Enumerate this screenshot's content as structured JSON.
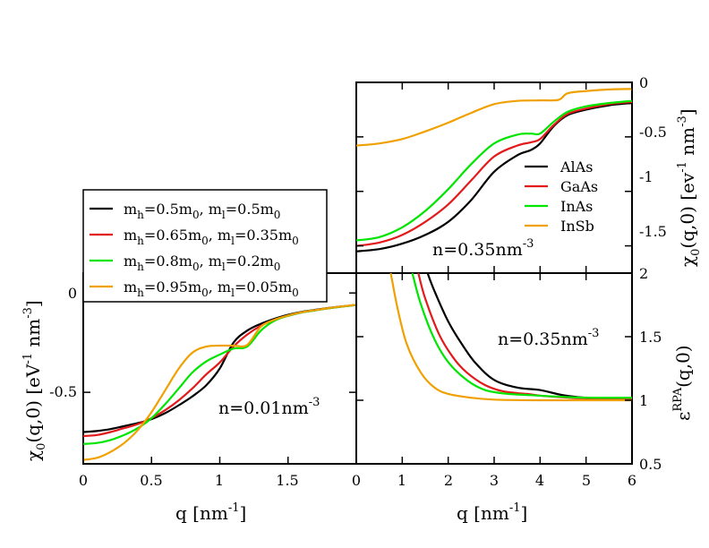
{
  "colors": {
    "black": "#000000",
    "red": "#e31a1c",
    "green": "#00e600",
    "orange": "#f0a000"
  },
  "chart_data": [
    {
      "id": "chi_low_density",
      "type": "line",
      "xlabel": "q [nm",
      "xlabel_sup": "-1",
      "xlabel_tail": "]",
      "ylabel_main": "χ",
      "ylabel_sub": "0",
      "ylabel_mid": "(q,0) [eV",
      "ylabel_sup1": "-1",
      "ylabel_mid2": " nm",
      "ylabel_sup2": "-3",
      "ylabel_tail": "]",
      "xlim": [
        0,
        2.0
      ],
      "ylim": [
        -0.86,
        0.1
      ],
      "xticks": [
        "0",
        "0.5",
        "1",
        "1.5"
      ],
      "yticks": [
        "-0.5",
        "0"
      ],
      "annotation": "n=0.01nm",
      "annotation_sup": "-3",
      "legend_position": "top-left",
      "series": [
        {
          "name": "m_h=0.5m_0, m_l=0.5m_0",
          "legend": {
            "a": "m",
            "b": "h",
            "c": "=0.5m",
            "d": "0",
            "e": ", m",
            "f": "l",
            "g": "=0.5m",
            "h": "0"
          },
          "color": "#000000",
          "x": [
            0,
            0.1,
            0.2,
            0.3,
            0.4,
            0.5,
            0.6,
            0.7,
            0.8,
            0.9,
            1.0,
            1.1,
            1.2,
            1.3,
            1.4,
            1.5,
            1.6,
            1.7,
            1.8,
            1.9,
            2.0
          ],
          "y": [
            -0.7,
            -0.695,
            -0.685,
            -0.67,
            -0.655,
            -0.635,
            -0.605,
            -0.565,
            -0.52,
            -0.465,
            -0.38,
            -0.25,
            -0.19,
            -0.155,
            -0.13,
            -0.11,
            -0.095,
            -0.085,
            -0.075,
            -0.067,
            -0.06
          ]
        },
        {
          "name": "m_h=0.65m_0, m_l=0.35m_0",
          "legend": {
            "a": "m",
            "b": "h",
            "c": "=0.65m",
            "d": "0",
            "e": ", m",
            "f": "l",
            "g": "=0.35m",
            "h": "0"
          },
          "color": "#e31a1c",
          "x": [
            0,
            0.1,
            0.2,
            0.3,
            0.4,
            0.5,
            0.6,
            0.7,
            0.8,
            0.9,
            1.0,
            1.1,
            1.2,
            1.3,
            1.4,
            1.5,
            1.6,
            1.7,
            1.8,
            1.9,
            2.0
          ],
          "y": [
            -0.72,
            -0.715,
            -0.7,
            -0.68,
            -0.66,
            -0.63,
            -0.59,
            -0.54,
            -0.48,
            -0.41,
            -0.35,
            -0.27,
            -0.21,
            -0.165,
            -0.135,
            -0.115,
            -0.098,
            -0.087,
            -0.077,
            -0.068,
            -0.06
          ]
        },
        {
          "name": "m_h=0.8m_0, m_l=0.2m_0",
          "legend": {
            "a": "m",
            "b": "h",
            "c": "=0.8m",
            "d": "0",
            "e": ", m",
            "f": "l",
            "g": "=0.2m",
            "h": "0"
          },
          "color": "#00e600",
          "x": [
            0,
            0.1,
            0.2,
            0.3,
            0.4,
            0.5,
            0.6,
            0.7,
            0.8,
            0.9,
            1.0,
            1.1,
            1.2,
            1.3,
            1.4,
            1.5,
            1.6,
            1.7,
            1.8,
            1.9,
            2.0
          ],
          "y": [
            -0.76,
            -0.755,
            -0.74,
            -0.715,
            -0.68,
            -0.63,
            -0.56,
            -0.48,
            -0.4,
            -0.345,
            -0.31,
            -0.28,
            -0.27,
            -0.19,
            -0.14,
            -0.115,
            -0.098,
            -0.087,
            -0.077,
            -0.068,
            -0.06
          ]
        },
        {
          "name": "m_h=0.95m_0, m_l=0.05m_0",
          "legend": {
            "a": "m",
            "b": "h",
            "c": "=0.95m",
            "d": "0",
            "e": ", m",
            "f": "l",
            "g": "=0.05m",
            "h": "0"
          },
          "color": "#f0a000",
          "x": [
            0,
            0.1,
            0.2,
            0.3,
            0.4,
            0.5,
            0.6,
            0.7,
            0.8,
            0.9,
            1.0,
            1.1,
            1.2,
            1.3,
            1.4,
            1.5,
            1.6,
            1.7,
            1.8,
            1.9,
            2.0
          ],
          "y": [
            -0.84,
            -0.83,
            -0.8,
            -0.755,
            -0.69,
            -0.6,
            -0.49,
            -0.38,
            -0.3,
            -0.27,
            -0.265,
            -0.265,
            -0.262,
            -0.17,
            -0.135,
            -0.113,
            -0.097,
            -0.086,
            -0.076,
            -0.067,
            -0.059
          ]
        }
      ]
    },
    {
      "id": "chi_high_density",
      "type": "line",
      "ylabel_main": "χ",
      "ylabel_sub": "0",
      "ylabel_mid": "(q,0) [ev",
      "ylabel_sup1": "-1",
      "ylabel_mid2": " nm",
      "ylabel_sup2": "-3",
      "ylabel_tail": "]",
      "xlim": [
        0,
        6
      ],
      "ylim": [
        -1.75,
        0
      ],
      "yticks": [
        "-1.5",
        "-1",
        "-0.5",
        "0"
      ],
      "annotation": "n=0.35nm",
      "annotation_sup": "-3",
      "legend_position": "center-right",
      "series": [
        {
          "name": "AlAs",
          "color": "#000000",
          "x": [
            0,
            0.5,
            1.0,
            1.5,
            2.0,
            2.5,
            3.0,
            3.5,
            3.8,
            4.0,
            4.3,
            4.6,
            5.0,
            5.5,
            6.0
          ],
          "y": [
            -1.55,
            -1.53,
            -1.48,
            -1.4,
            -1.28,
            -1.08,
            -0.82,
            -0.67,
            -0.62,
            -0.56,
            -0.4,
            -0.3,
            -0.25,
            -0.21,
            -0.19
          ]
        },
        {
          "name": "GaAs",
          "color": "#e31a1c",
          "x": [
            0,
            0.5,
            1.0,
            1.5,
            2.0,
            2.5,
            3.0,
            3.5,
            3.8,
            4.0,
            4.3,
            4.6,
            5.0,
            5.5,
            6.0
          ],
          "y": [
            -1.5,
            -1.47,
            -1.4,
            -1.28,
            -1.12,
            -0.9,
            -0.68,
            -0.58,
            -0.55,
            -0.52,
            -0.39,
            -0.29,
            -0.24,
            -0.2,
            -0.18
          ]
        },
        {
          "name": "InAs",
          "color": "#00e600",
          "x": [
            0,
            0.5,
            1.0,
            1.5,
            2.0,
            2.5,
            3.0,
            3.5,
            3.8,
            4.0,
            4.3,
            4.6,
            5.0,
            5.5,
            6.0
          ],
          "y": [
            -1.45,
            -1.42,
            -1.33,
            -1.18,
            -0.98,
            -0.75,
            -0.56,
            -0.48,
            -0.47,
            -0.47,
            -0.36,
            -0.27,
            -0.22,
            -0.19,
            -0.17
          ]
        },
        {
          "name": "InSb",
          "color": "#f0a000",
          "x": [
            0,
            0.5,
            1.0,
            1.5,
            2.0,
            2.5,
            3.0,
            3.5,
            4.0,
            4.4,
            4.6,
            5.0,
            5.5,
            6.0
          ],
          "y": [
            -0.58,
            -0.56,
            -0.52,
            -0.45,
            -0.37,
            -0.28,
            -0.2,
            -0.17,
            -0.165,
            -0.16,
            -0.1,
            -0.08,
            -0.065,
            -0.06
          ]
        }
      ]
    },
    {
      "id": "eps_rpa",
      "type": "line",
      "xlabel": "q [nm",
      "xlabel_sup": "-1",
      "xlabel_tail": "]",
      "ylabel_main": "ε",
      "ylabel_sup": "RPA",
      "ylabel_tail": "(q,0)",
      "xlim": [
        0,
        6
      ],
      "ylim": [
        0.5,
        2.0
      ],
      "xticks": [
        "0",
        "1",
        "2",
        "3",
        "4",
        "5",
        "6"
      ],
      "yticks": [
        "0.5",
        "1",
        "1.5",
        "2"
      ],
      "annotation": "n=0.35nm",
      "annotation_sup": "-3",
      "series": [
        {
          "name": "AlAs",
          "color": "#000000",
          "x": [
            1.55,
            1.7,
            2.0,
            2.3,
            2.6,
            3.0,
            3.5,
            4.0,
            4.5,
            5.0,
            5.5,
            6.0
          ],
          "y": [
            2.0,
            1.86,
            1.62,
            1.44,
            1.29,
            1.16,
            1.1,
            1.08,
            1.04,
            1.02,
            1.015,
            1.01
          ]
        },
        {
          "name": "GaAs",
          "color": "#e31a1c",
          "x": [
            1.35,
            1.5,
            1.8,
            2.1,
            2.4,
            2.8,
            3.2,
            3.7,
            4.2,
            5.0,
            6.0
          ],
          "y": [
            2.0,
            1.8,
            1.52,
            1.34,
            1.22,
            1.12,
            1.07,
            1.05,
            1.03,
            1.015,
            1.01
          ]
        },
        {
          "name": "InAs",
          "color": "#00e600",
          "x": [
            1.22,
            1.4,
            1.7,
            2.0,
            2.4,
            2.8,
            3.3,
            3.8,
            4.3,
            5.0,
            6.0
          ],
          "y": [
            2.0,
            1.76,
            1.48,
            1.3,
            1.16,
            1.08,
            1.05,
            1.04,
            1.03,
            1.02,
            1.02
          ]
        },
        {
          "name": "InSb",
          "color": "#f0a000",
          "x": [
            0.75,
            0.9,
            1.1,
            1.4,
            1.7,
            2.0,
            2.5,
            3.0,
            4.0,
            5.0,
            6.0
          ],
          "y": [
            2.0,
            1.72,
            1.44,
            1.22,
            1.1,
            1.05,
            1.02,
            1.005,
            1.0,
            1.0,
            1.0
          ]
        }
      ]
    }
  ]
}
